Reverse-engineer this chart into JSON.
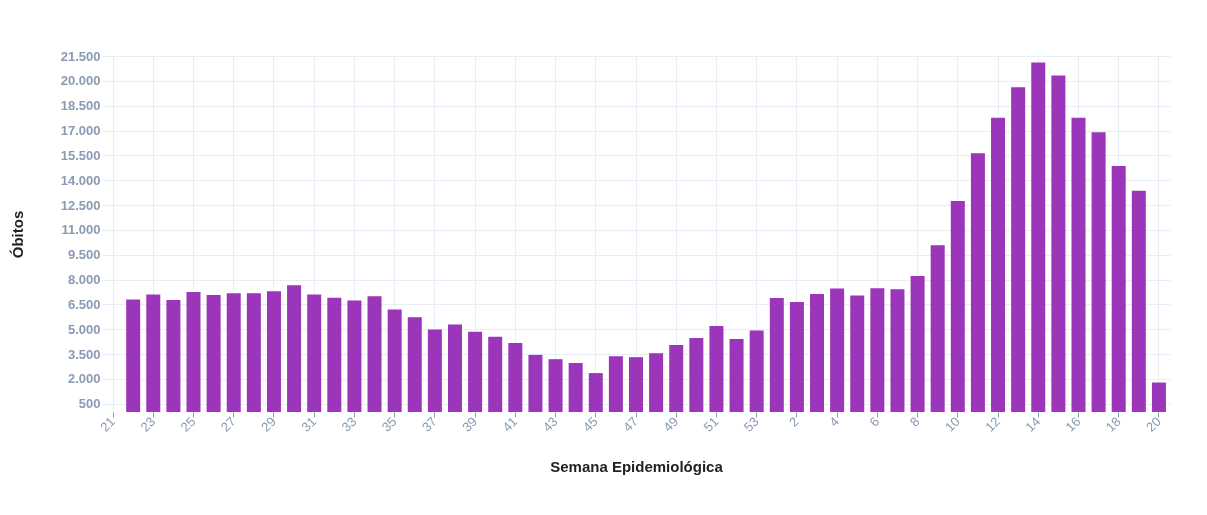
{
  "chart_data": {
    "type": "bar",
    "xlabel": "Semana Epidemiológica",
    "ylabel": "Óbitos",
    "categories": [
      "21",
      null,
      "23",
      null,
      "25",
      null,
      "27",
      null,
      "29",
      null,
      "31",
      null,
      "33",
      null,
      "35",
      null,
      "37",
      null,
      "39",
      null,
      "41",
      null,
      "43",
      null,
      "45",
      null,
      "47",
      null,
      "49",
      null,
      "51",
      null,
      "53",
      null,
      "2",
      null,
      "4",
      null,
      "6",
      null,
      "8",
      null,
      "10",
      null,
      "12",
      null,
      "14",
      null,
      "16",
      null,
      "18",
      null,
      "20"
    ],
    "values": [
      null,
      6800,
      7090,
      6760,
      7250,
      7070,
      7170,
      7170,
      7290,
      7660,
      7090,
      6900,
      6740,
      6990,
      6190,
      5720,
      4980,
      5290,
      4840,
      4540,
      4170,
      3450,
      3190,
      2960,
      2350,
      3370,
      3310,
      3550,
      4040,
      4470,
      5190,
      4410,
      4920,
      6880,
      6640,
      7130,
      7460,
      7030,
      7480,
      7410,
      8210,
      10070,
      12750,
      15620,
      17770,
      19610,
      21100,
      20320,
      17770,
      16900,
      14850,
      13360,
      1780
    ],
    "color": "#9b35b9",
    "ylim": [
      0,
      21500
    ],
    "yticks": [
      500,
      {
        "value": 2000,
        "label": "2.000"
      },
      {
        "value": 3500,
        "label": "3.500"
      },
      {
        "value": 5000,
        "label": "5.000"
      },
      {
        "value": 6500,
        "label": "6.500"
      },
      {
        "value": 8000,
        "label": "8.000"
      },
      {
        "value": 9500,
        "label": "9.500"
      },
      {
        "value": 11000,
        "label": "11.000"
      },
      {
        "value": 12500,
        "label": "12.500"
      },
      {
        "value": 14000,
        "label": "14.000"
      },
      {
        "value": 15500,
        "label": "15.500"
      },
      {
        "value": 17000,
        "label": "17.000"
      },
      {
        "value": 18500,
        "label": "18.500"
      },
      {
        "value": 20000,
        "label": "20.000"
      },
      {
        "value": 21500,
        "label": "21.500"
      }
    ],
    "grid": true
  }
}
